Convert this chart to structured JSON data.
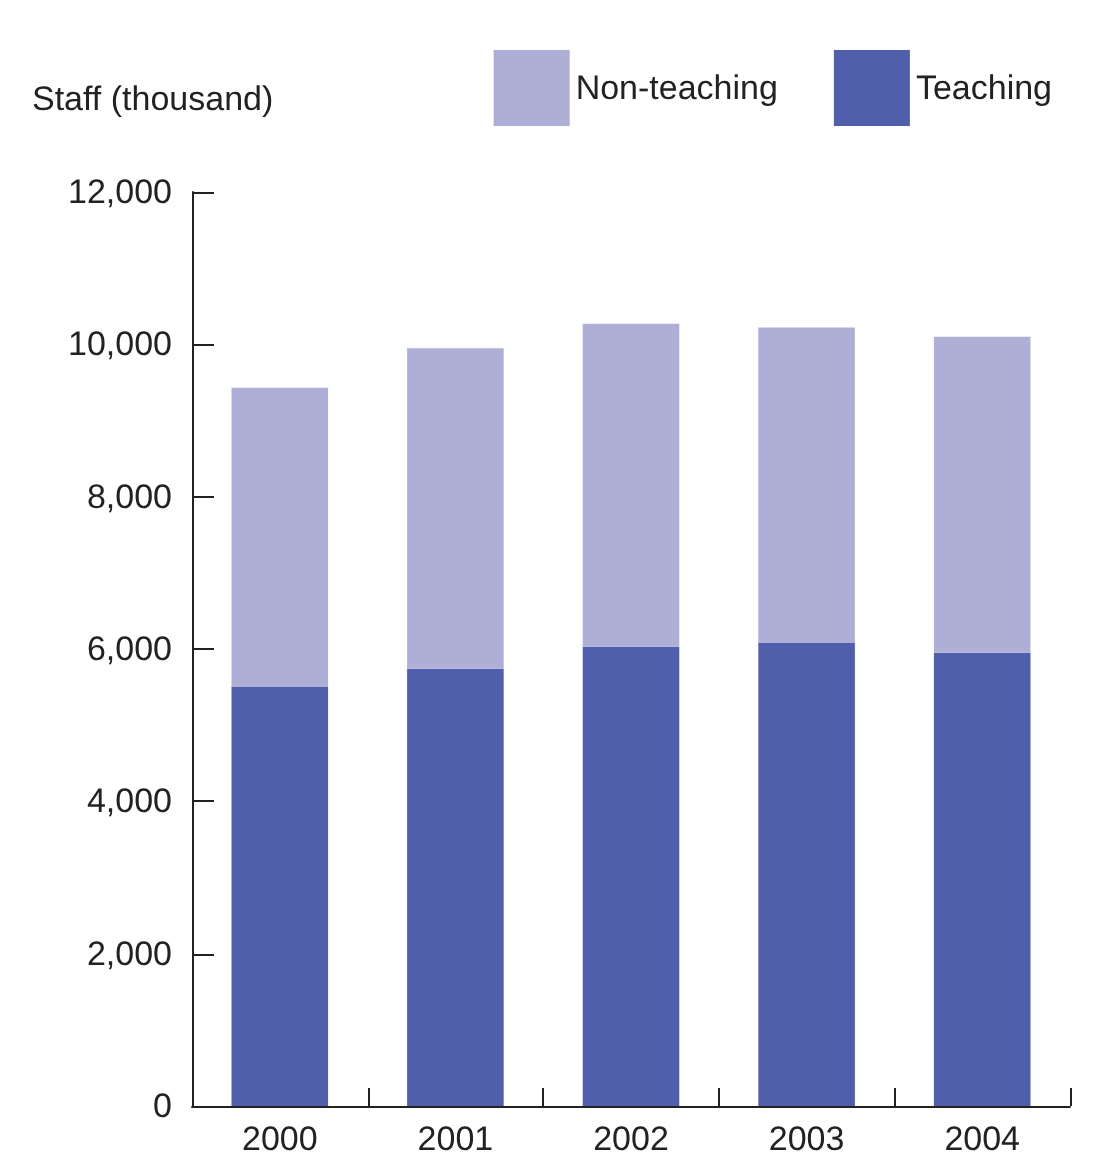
{
  "chart_data": {
    "type": "bar",
    "stacked": true,
    "ylabel": "Staff (thousand)",
    "categories": [
      "2000",
      "2001",
      "2002",
      "2003",
      "2004"
    ],
    "series": [
      {
        "name": "Teaching",
        "color": "#505fab",
        "values": [
          5500,
          5740,
          6030,
          6080,
          5950
        ]
      },
      {
        "name": "Non-teaching",
        "color": "#adafd7",
        "values": [
          3930,
          4210,
          4240,
          4140,
          4150
        ]
      }
    ],
    "ylim": [
      0,
      12000
    ],
    "yticks": [
      {
        "value": 0,
        "label": "0"
      },
      {
        "value": 2000,
        "label": "2,000"
      },
      {
        "value": 4000,
        "label": "4,000"
      },
      {
        "value": 6000,
        "label": "6,000"
      },
      {
        "value": 8000,
        "label": "8,000"
      },
      {
        "value": 10000,
        "label": "10,000"
      },
      {
        "value": 12000,
        "label": "12,000"
      }
    ],
    "grid": false,
    "legend": "top right"
  }
}
